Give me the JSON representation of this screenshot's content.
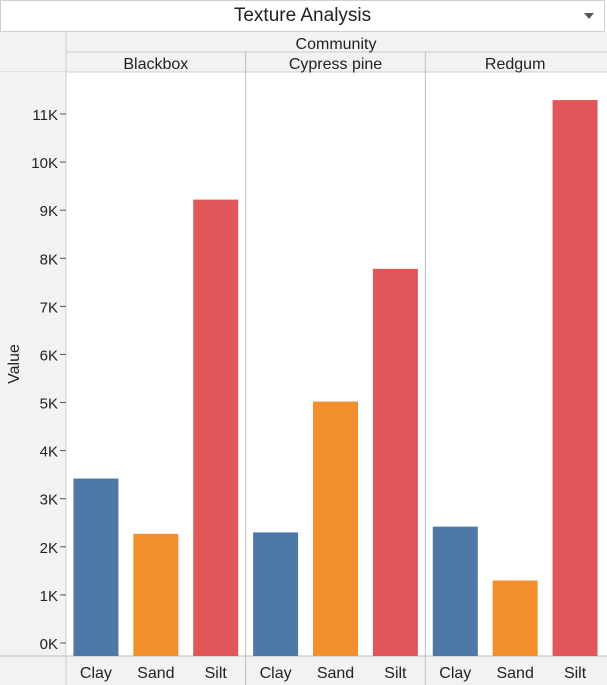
{
  "header": {
    "title": "Texture Analysis"
  },
  "colors": {
    "Clay": "#4e79a7",
    "Sand": "#f28e2b",
    "Silt": "#e15759"
  },
  "chart_data": {
    "type": "bar",
    "title": "Texture Analysis",
    "column_header": "Community",
    "panels": [
      "Blackbox",
      "Cypress pine",
      "Redgum"
    ],
    "categories": [
      "Clay",
      "Sand",
      "Silt"
    ],
    "series": [
      {
        "panel": "Blackbox",
        "values": [
          3420,
          2270,
          9220
        ]
      },
      {
        "panel": "Cypress pine",
        "values": [
          2300,
          5020,
          7780
        ]
      },
      {
        "panel": "Redgum",
        "values": [
          2420,
          1300,
          11290
        ]
      }
    ],
    "ylabel": "Value",
    "xlabel": "",
    "ylim": [
      0,
      11600
    ],
    "yticks": [
      0,
      1000,
      2000,
      3000,
      4000,
      5000,
      6000,
      7000,
      8000,
      9000,
      10000,
      11000
    ],
    "ytick_labels": [
      "0K",
      "1K",
      "2K",
      "3K",
      "4K",
      "5K",
      "6K",
      "7K",
      "8K",
      "9K",
      "10K",
      "11K"
    ],
    "grid": false,
    "legend": "none"
  }
}
